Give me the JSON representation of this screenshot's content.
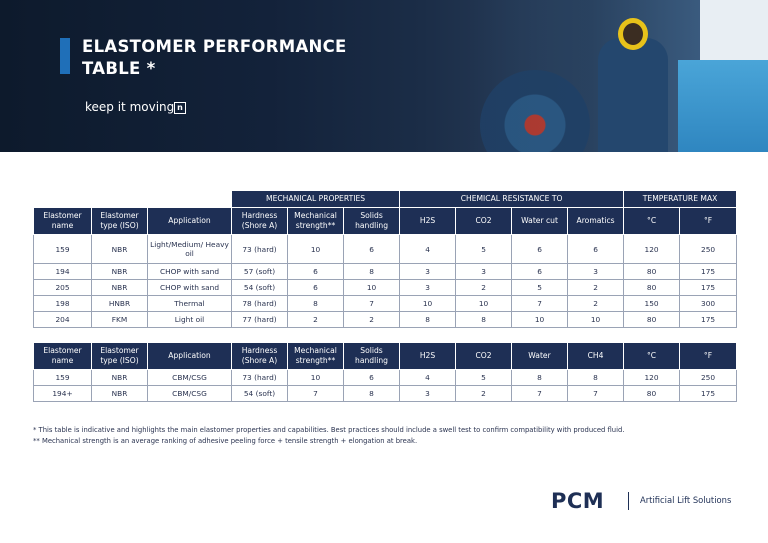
{
  "header": {
    "title_line1": "ELASTOMER PERFORMANCE",
    "title_line2": "TABLE *",
    "tagline": "keep it moving",
    "tagline_icon": "n"
  },
  "table1": {
    "groups": {
      "mechanical": "MECHANICAL PROPERTIES",
      "chemical": "CHEMICAL RESISTANCE TO",
      "temperature": "TEMPERATURE MAX"
    },
    "headers": {
      "name": "Elastomer name",
      "type": "Elastomer type (ISO)",
      "application": "Application",
      "hardness": "Hardness (Shore A)",
      "mechanical": "Mechanical strength**",
      "solids": "Solids handling",
      "h2s": "H2S",
      "co2": "CO2",
      "water": "Water cut",
      "other": "Aromatics",
      "c": "°C",
      "f": "°F"
    },
    "rows": [
      [
        "159",
        "NBR",
        "Light/Medium/ Heavy oil",
        "73 (hard)",
        "10",
        "6",
        "4",
        "5",
        "6",
        "6",
        "120",
        "250"
      ],
      [
        "194",
        "NBR",
        "CHOP with sand",
        "57 (soft)",
        "6",
        "8",
        "3",
        "3",
        "6",
        "3",
        "80",
        "175"
      ],
      [
        "205",
        "NBR",
        "CHOP with sand",
        "54 (soft)",
        "6",
        "10",
        "3",
        "2",
        "5",
        "2",
        "80",
        "175"
      ],
      [
        "198",
        "HNBR",
        "Thermal",
        "78 (hard)",
        "8",
        "7",
        "10",
        "10",
        "7",
        "2",
        "150",
        "300"
      ],
      [
        "204",
        "FKM",
        "Light oil",
        "77 (hard)",
        "2",
        "2",
        "8",
        "8",
        "10",
        "10",
        "80",
        "175"
      ]
    ]
  },
  "table2": {
    "headers": {
      "name": "Elastomer name",
      "type": "Elastomer type (ISO)",
      "application": "Application",
      "hardness": "Hardness (Shore A)",
      "mechanical": "Mechanical strength**",
      "solids": "Solids handling",
      "h2s": "H2S",
      "co2": "CO2",
      "water": "Water",
      "other": "CH4",
      "c": "°C",
      "f": "°F"
    },
    "rows": [
      [
        "159",
        "NBR",
        "CBM/CSG",
        "73 (hard)",
        "10",
        "6",
        "4",
        "5",
        "8",
        "8",
        "120",
        "250"
      ],
      [
        "194+",
        "NBR",
        "CBM/CSG",
        "54 (soft)",
        "7",
        "8",
        "3",
        "2",
        "7",
        "7",
        "80",
        "175"
      ]
    ]
  },
  "notes": {
    "note1": "* This table is indicative and highlights the main elastomer properties and capabilities. Best practices should include a swell test to confirm compatibility with produced fluid.",
    "note2": "** Mechanical strength is an average ranking of adhesive peeling force + tensile strength + elongation at break."
  },
  "logo": {
    "mark": "PCM",
    "sub": "Artificial Lift Solutions",
    "color": "#1e2f55"
  },
  "colors": {
    "header_fill": "#1e2f55",
    "accent": "#1f6fb8"
  }
}
